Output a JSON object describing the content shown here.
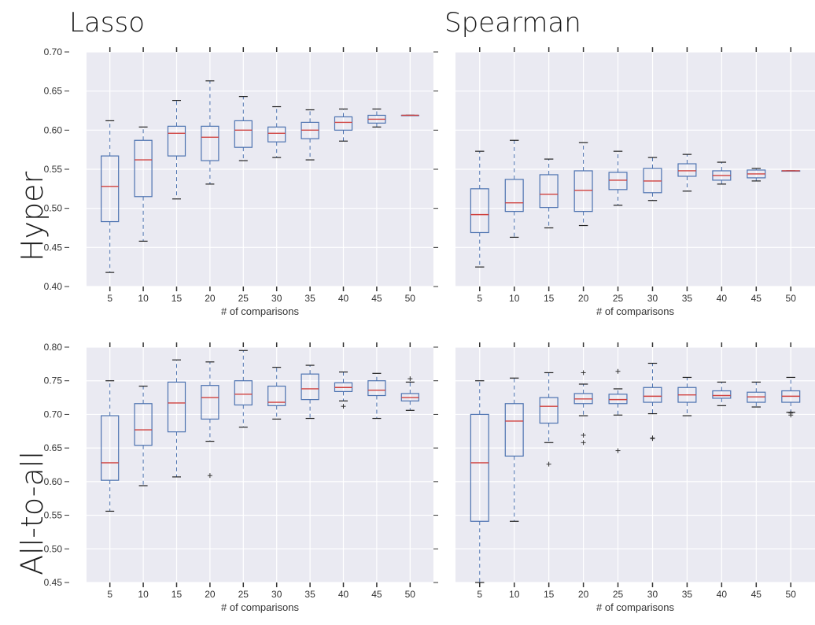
{
  "titles": {
    "col_left": "Lasso",
    "col_right": "Spearman",
    "row_top": "Hyper",
    "row_bottom": "All-to-all"
  },
  "colors": {
    "panel_bg": "#eaeaf2",
    "grid": "#ffffff",
    "box": "#4c72b0",
    "median": "#d0413e",
    "outlier": "#333333"
  },
  "chart_data": [
    {
      "type": "box",
      "panel": "Lasso / Hyper",
      "xlabel": "# of comparisons",
      "categories": [
        "5",
        "10",
        "15",
        "20",
        "25",
        "30",
        "35",
        "40",
        "45",
        "50"
      ],
      "ylim": [
        0.4,
        0.7
      ],
      "yticks": [
        "0.40",
        "0.45",
        "0.50",
        "0.55",
        "0.60",
        "0.65",
        "0.70"
      ],
      "ytick_labels_visible": true,
      "grid": true,
      "boxes": [
        {
          "whislo": 0.418,
          "q1": 0.483,
          "med": 0.528,
          "q3": 0.567,
          "whishi": 0.612,
          "fliers": []
        },
        {
          "whislo": 0.458,
          "q1": 0.515,
          "med": 0.562,
          "q3": 0.587,
          "whishi": 0.604,
          "fliers": []
        },
        {
          "whislo": 0.512,
          "q1": 0.567,
          "med": 0.596,
          "q3": 0.605,
          "whishi": 0.638,
          "fliers": []
        },
        {
          "whislo": 0.531,
          "q1": 0.561,
          "med": 0.591,
          "q3": 0.605,
          "whishi": 0.663,
          "fliers": []
        },
        {
          "whislo": 0.561,
          "q1": 0.578,
          "med": 0.6,
          "q3": 0.612,
          "whishi": 0.643,
          "fliers": []
        },
        {
          "whislo": 0.565,
          "q1": 0.585,
          "med": 0.596,
          "q3": 0.604,
          "whishi": 0.63,
          "fliers": []
        },
        {
          "whislo": 0.562,
          "q1": 0.589,
          "med": 0.6,
          "q3": 0.61,
          "whishi": 0.626,
          "fliers": []
        },
        {
          "whislo": 0.586,
          "q1": 0.6,
          "med": 0.61,
          "q3": 0.617,
          "whishi": 0.627,
          "fliers": []
        },
        {
          "whislo": 0.604,
          "q1": 0.609,
          "med": 0.614,
          "q3": 0.619,
          "whishi": 0.627,
          "fliers": []
        },
        {
          "whislo": 0.619,
          "q1": 0.619,
          "med": 0.619,
          "q3": 0.619,
          "whishi": 0.619,
          "fliers": []
        }
      ]
    },
    {
      "type": "box",
      "panel": "Spearman / Hyper",
      "xlabel": "# of comparisons",
      "categories": [
        "5",
        "10",
        "15",
        "20",
        "25",
        "30",
        "35",
        "40",
        "45",
        "50"
      ],
      "ylim": [
        0.4,
        0.7
      ],
      "yticks": [
        "0.40",
        "0.45",
        "0.50",
        "0.55",
        "0.60",
        "0.65",
        "0.70"
      ],
      "ytick_labels_visible": false,
      "grid": true,
      "boxes": [
        {
          "whislo": 0.425,
          "q1": 0.469,
          "med": 0.492,
          "q3": 0.525,
          "whishi": 0.573,
          "fliers": []
        },
        {
          "whislo": 0.463,
          "q1": 0.496,
          "med": 0.507,
          "q3": 0.537,
          "whishi": 0.587,
          "fliers": []
        },
        {
          "whislo": 0.475,
          "q1": 0.501,
          "med": 0.518,
          "q3": 0.543,
          "whishi": 0.563,
          "fliers": []
        },
        {
          "whislo": 0.478,
          "q1": 0.496,
          "med": 0.523,
          "q3": 0.548,
          "whishi": 0.584,
          "fliers": []
        },
        {
          "whislo": 0.504,
          "q1": 0.524,
          "med": 0.536,
          "q3": 0.546,
          "whishi": 0.573,
          "fliers": []
        },
        {
          "whislo": 0.51,
          "q1": 0.52,
          "med": 0.535,
          "q3": 0.551,
          "whishi": 0.565,
          "fliers": []
        },
        {
          "whislo": 0.522,
          "q1": 0.541,
          "med": 0.548,
          "q3": 0.557,
          "whishi": 0.569,
          "fliers": []
        },
        {
          "whislo": 0.531,
          "q1": 0.536,
          "med": 0.542,
          "q3": 0.548,
          "whishi": 0.559,
          "fliers": []
        },
        {
          "whislo": 0.535,
          "q1": 0.539,
          "med": 0.544,
          "q3": 0.549,
          "whishi": 0.551,
          "fliers": []
        },
        {
          "whislo": 0.548,
          "q1": 0.548,
          "med": 0.548,
          "q3": 0.548,
          "whishi": 0.548,
          "fliers": []
        }
      ]
    },
    {
      "type": "box",
      "panel": "Lasso / All-to-all",
      "xlabel": "# of comparisons",
      "categories": [
        "5",
        "10",
        "15",
        "20",
        "25",
        "30",
        "35",
        "40",
        "45",
        "50"
      ],
      "ylim": [
        0.45,
        0.8
      ],
      "yticks": [
        "0.45",
        "0.50",
        "0.55",
        "0.60",
        "0.65",
        "0.70",
        "0.75",
        "0.80"
      ],
      "ytick_labels_visible": true,
      "grid": true,
      "boxes": [
        {
          "whislo": 0.556,
          "q1": 0.602,
          "med": 0.628,
          "q3": 0.698,
          "whishi": 0.75,
          "fliers": []
        },
        {
          "whislo": 0.594,
          "q1": 0.654,
          "med": 0.677,
          "q3": 0.716,
          "whishi": 0.742,
          "fliers": []
        },
        {
          "whislo": 0.607,
          "q1": 0.674,
          "med": 0.717,
          "q3": 0.748,
          "whishi": 0.781,
          "fliers": []
        },
        {
          "whislo": 0.66,
          "q1": 0.693,
          "med": 0.725,
          "q3": 0.743,
          "whishi": 0.778,
          "fliers": [
            0.609
          ]
        },
        {
          "whislo": 0.681,
          "q1": 0.714,
          "med": 0.73,
          "q3": 0.75,
          "whishi": 0.795,
          "fliers": []
        },
        {
          "whislo": 0.693,
          "q1": 0.713,
          "med": 0.718,
          "q3": 0.742,
          "whishi": 0.77,
          "fliers": []
        },
        {
          "whislo": 0.694,
          "q1": 0.722,
          "med": 0.738,
          "q3": 0.76,
          "whishi": 0.773,
          "fliers": []
        },
        {
          "whislo": 0.72,
          "q1": 0.734,
          "med": 0.74,
          "q3": 0.747,
          "whishi": 0.763,
          "fliers": [
            0.712
          ]
        },
        {
          "whislo": 0.694,
          "q1": 0.728,
          "med": 0.736,
          "q3": 0.75,
          "whishi": 0.761,
          "fliers": []
        },
        {
          "whislo": 0.706,
          "q1": 0.72,
          "med": 0.725,
          "q3": 0.731,
          "whishi": 0.748,
          "fliers": [
            0.753
          ]
        }
      ]
    },
    {
      "type": "box",
      "panel": "Spearman / All-to-all",
      "xlabel": "# of comparisons",
      "categories": [
        "5",
        "10",
        "15",
        "20",
        "25",
        "30",
        "35",
        "40",
        "45",
        "50"
      ],
      "ylim": [
        0.45,
        0.8
      ],
      "yticks": [
        "0.45",
        "0.50",
        "0.55",
        "0.60",
        "0.65",
        "0.70",
        "0.75",
        "0.80"
      ],
      "ytick_labels_visible": false,
      "grid": true,
      "boxes": [
        {
          "whislo": 0.45,
          "q1": 0.541,
          "med": 0.628,
          "q3": 0.7,
          "whishi": 0.75,
          "fliers": []
        },
        {
          "whislo": 0.541,
          "q1": 0.638,
          "med": 0.69,
          "q3": 0.716,
          "whishi": 0.754,
          "fliers": []
        },
        {
          "whislo": 0.658,
          "q1": 0.687,
          "med": 0.712,
          "q3": 0.725,
          "whishi": 0.762,
          "fliers": [
            0.626
          ]
        },
        {
          "whislo": 0.698,
          "q1": 0.716,
          "med": 0.723,
          "q3": 0.731,
          "whishi": 0.745,
          "fliers": [
            0.762,
            0.669,
            0.658
          ]
        },
        {
          "whislo": 0.699,
          "q1": 0.716,
          "med": 0.722,
          "q3": 0.73,
          "whishi": 0.738,
          "fliers": [
            0.764,
            0.646
          ]
        },
        {
          "whislo": 0.701,
          "q1": 0.718,
          "med": 0.727,
          "q3": 0.74,
          "whishi": 0.776,
          "fliers": [
            0.665,
            0.664
          ]
        },
        {
          "whislo": 0.698,
          "q1": 0.718,
          "med": 0.729,
          "q3": 0.74,
          "whishi": 0.755,
          "fliers": []
        },
        {
          "whislo": 0.713,
          "q1": 0.724,
          "med": 0.728,
          "q3": 0.735,
          "whishi": 0.748,
          "fliers": []
        },
        {
          "whislo": 0.711,
          "q1": 0.718,
          "med": 0.726,
          "q3": 0.733,
          "whishi": 0.748,
          "fliers": []
        },
        {
          "whislo": 0.703,
          "q1": 0.718,
          "med": 0.727,
          "q3": 0.735,
          "whishi": 0.755,
          "fliers": [
            0.702,
            0.699
          ]
        }
      ]
    }
  ]
}
